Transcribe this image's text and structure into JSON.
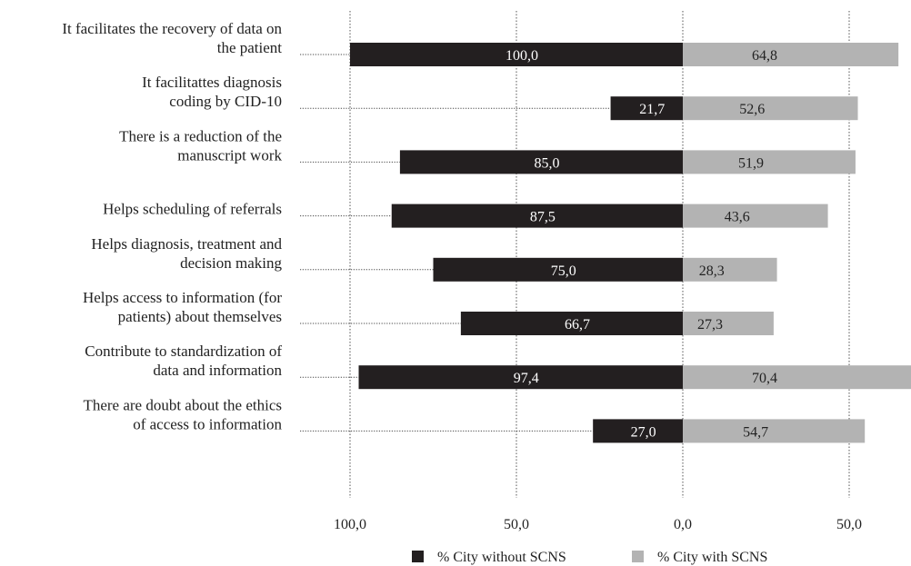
{
  "chart_data": {
    "type": "bar",
    "orientation": "horizontal-diverging",
    "title": "",
    "xlabel": "",
    "ylabel": "",
    "xlim": [
      -100,
      68
    ],
    "grid": "vertical-dotted",
    "legend_position": "bottom-center",
    "categories": [
      [
        "It facilitates the recovery of data on",
        "the patient"
      ],
      [
        "It facilitattes diagnosis",
        "coding by CID-10"
      ],
      [
        "There is a reduction of the",
        "manuscript work"
      ],
      [
        "Helps scheduling of referrals"
      ],
      [
        "Helps diagnosis, treatment and",
        "decision making"
      ],
      [
        "Helps access to information (for",
        "patients) about themselves"
      ],
      [
        "Contribute to standardization of",
        "data and information"
      ],
      [
        "There are doubt about the ethics",
        "of access to information"
      ]
    ],
    "series": [
      {
        "name": "% City without SCNS",
        "side": "left",
        "color": "#231f20",
        "label_color": "#ffffff",
        "values": [
          100.0,
          21.7,
          85.0,
          87.5,
          75.0,
          66.7,
          97.4,
          27.0
        ],
        "labels": [
          "100,0",
          "21,7",
          "85,0",
          "87,5",
          "75,0",
          "66,7",
          "97,4",
          "27,0"
        ]
      },
      {
        "name": "% City with SCNS",
        "side": "right",
        "color": "#b3b3b3",
        "label_color": "#222222",
        "values": [
          64.8,
          52.6,
          51.9,
          43.6,
          28.3,
          27.3,
          70.4,
          54.7
        ],
        "labels": [
          "64,8",
          "52,6",
          "51,9",
          "43,6",
          "28,3",
          "27,3",
          "70,4",
          "54,7"
        ]
      }
    ],
    "ticks": [
      {
        "value": -100,
        "label": "100,0"
      },
      {
        "value": -50,
        "label": "50,0"
      },
      {
        "value": 0,
        "label": "0,0"
      },
      {
        "value": 50,
        "label": "50,0"
      }
    ]
  }
}
